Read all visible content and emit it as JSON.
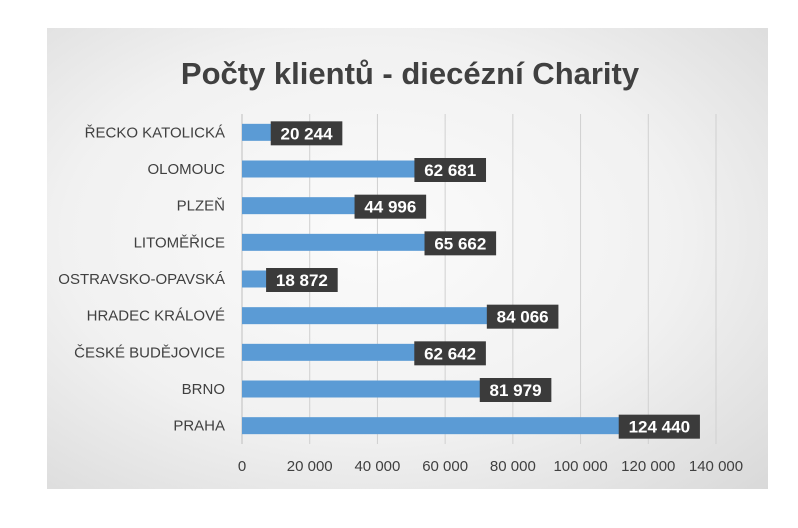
{
  "chart_data": {
    "type": "bar",
    "orientation": "horizontal",
    "title": "Počty klientů - diecézní Charity",
    "categories": [
      "ŘECKO KATOLICKÁ",
      "OLOMOUC",
      "PLZEŇ",
      "LITOMĚŘICE",
      "OSTRAVSKO-OPAVSKÁ",
      "HRADEC KRÁLOVÉ",
      "ČESKÉ BUDĚJOVICE",
      "BRNO",
      "PRAHA"
    ],
    "values": [
      20244,
      62681,
      44996,
      65662,
      18872,
      84066,
      62642,
      81979,
      124440
    ],
    "value_labels": [
      "20 244",
      "62 681",
      "44 996",
      "65 662",
      "18 872",
      "84 066",
      "62 642",
      "81 979",
      "124 440"
    ],
    "xlim": [
      0,
      140000
    ],
    "x_ticks": [
      0,
      20000,
      40000,
      60000,
      80000,
      100000,
      120000,
      140000
    ],
    "x_tick_labels": [
      "0",
      "20 000",
      "40 000",
      "60 000",
      "80 000",
      "100 000",
      "120 000",
      "140 000"
    ],
    "grid": true,
    "legend": "none",
    "colors": {
      "bar": "#5b9bd5",
      "label_bg": "#3b3b3b",
      "label_text": "#ffffff",
      "grid": "#d0d0d0",
      "text": "#404040"
    }
  }
}
